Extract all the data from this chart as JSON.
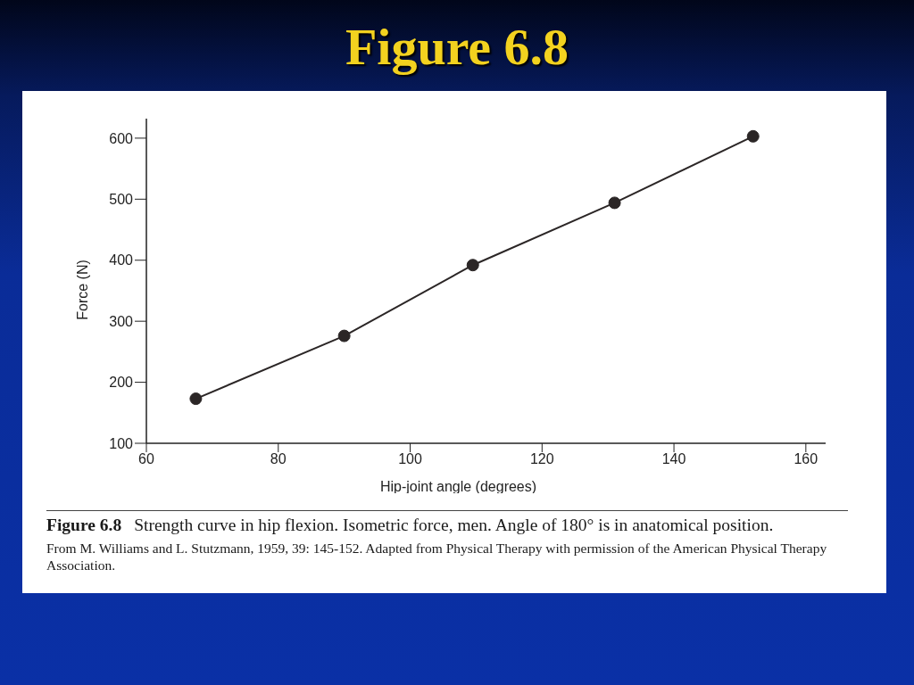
{
  "chart_data": {
    "type": "line",
    "title": "Figure 6.8",
    "xlabel": "Hip-joint angle (degrees)",
    "ylabel": "Force (N)",
    "x": [
      67.5,
      90,
      109.5,
      131,
      152
    ],
    "series": [
      {
        "color": "#2b2626",
        "values": [
          173,
          276,
          392,
          494,
          603
        ]
      }
    ],
    "xlim": [
      60,
      163
    ],
    "xticks": [
      60,
      80,
      100,
      120,
      140,
      160
    ],
    "ylim": [
      100,
      632
    ],
    "yticks": [
      100,
      200,
      300,
      400,
      500,
      600
    ],
    "marker": "circle",
    "line_style": "solid",
    "annotations": [
      "Figure 6.8",
      "Strength curve in hip flexion. Isometric force, men. Angle of 180° is in anatomical position.",
      "From M. Williams and L. Stutzmann, 1959, 39: 145-152. Adapted from Physical Therapy with permission of the American Physical Therapy Association."
    ]
  }
}
